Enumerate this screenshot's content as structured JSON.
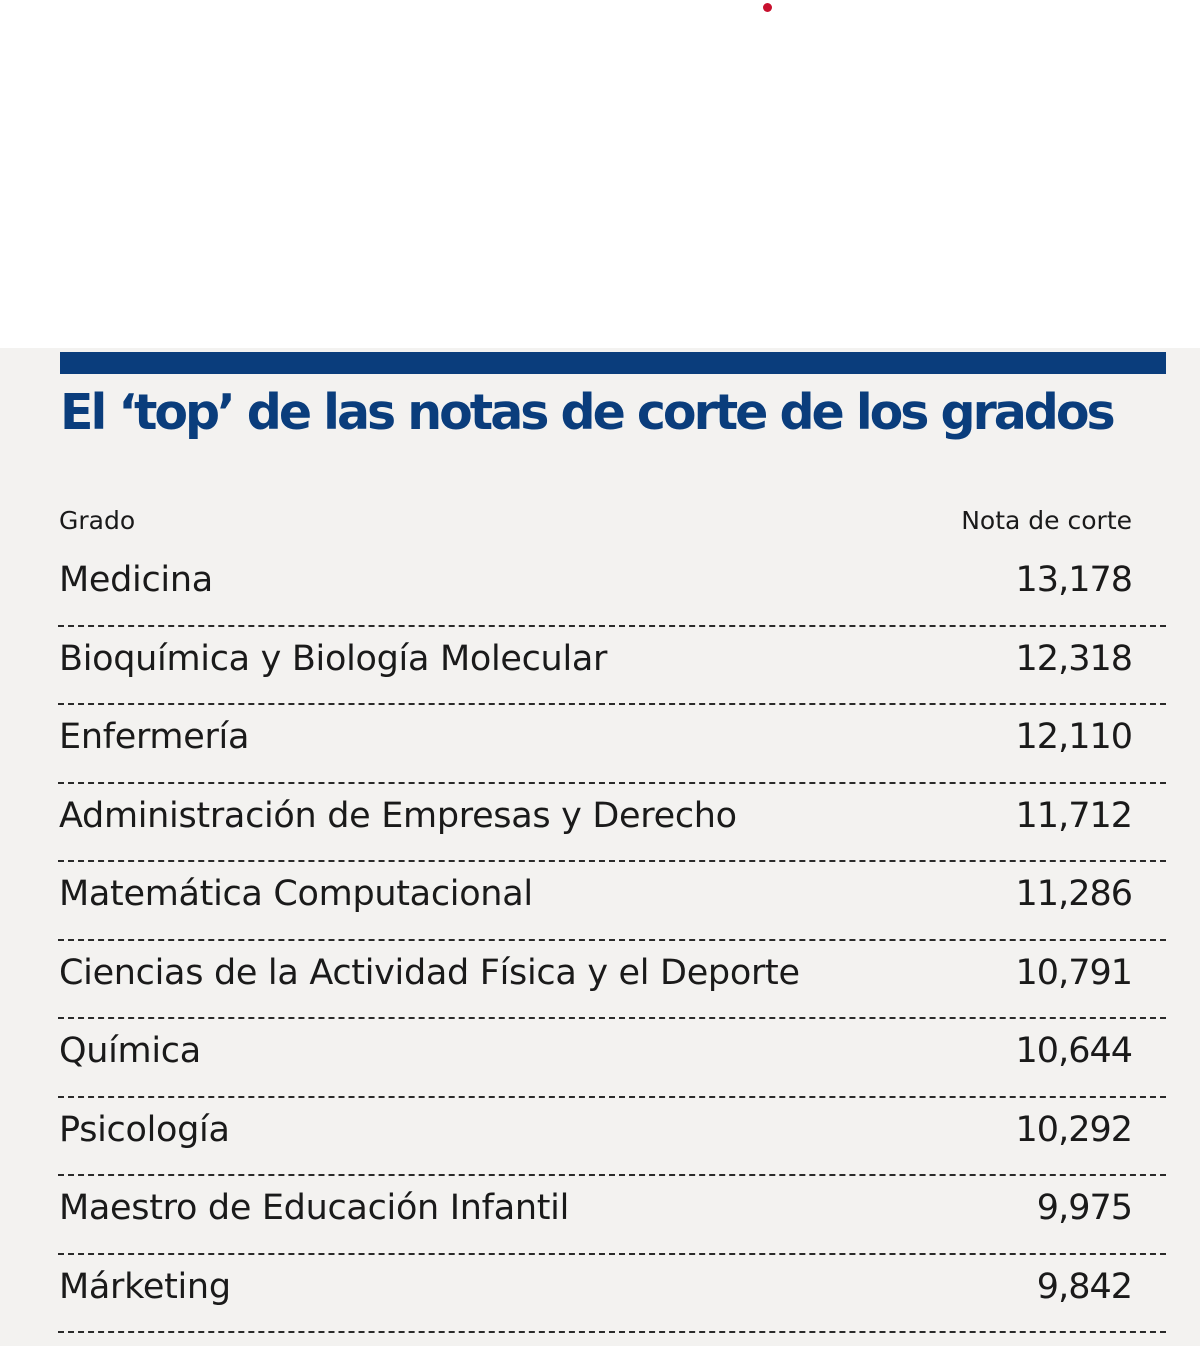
{
  "colors": {
    "accent": "#0a3d7c",
    "panel_background": "#f3f2f0",
    "text": "#1a1a1a",
    "dot": "#c8102e"
  },
  "chart_data": {
    "type": "table",
    "title": "El ‘top’ de las notas de corte de los grados",
    "columns": [
      "Grado",
      "Nota de corte"
    ],
    "rows": [
      {
        "grado": "Medicina",
        "nota": "13,178"
      },
      {
        "grado": "Bioquímica y Biología Molecular",
        "nota": "12,318"
      },
      {
        "grado": "Enfermería",
        "nota": "12,110"
      },
      {
        "grado": "Administración de Empresas y Derecho",
        "nota": "11,712"
      },
      {
        "grado": "Matemática Computacional",
        "nota": "11,286"
      },
      {
        "grado": "Ciencias de la Actividad Física y el Deporte",
        "nota": "10,791"
      },
      {
        "grado": "Química",
        "nota": "10,644"
      },
      {
        "grado": "Psicología",
        "nota": "10,292"
      },
      {
        "grado": "Maestro de Educación Infantil",
        "nota": "9,975"
      },
      {
        "grado": "Márketing",
        "nota": "9,842"
      }
    ]
  }
}
